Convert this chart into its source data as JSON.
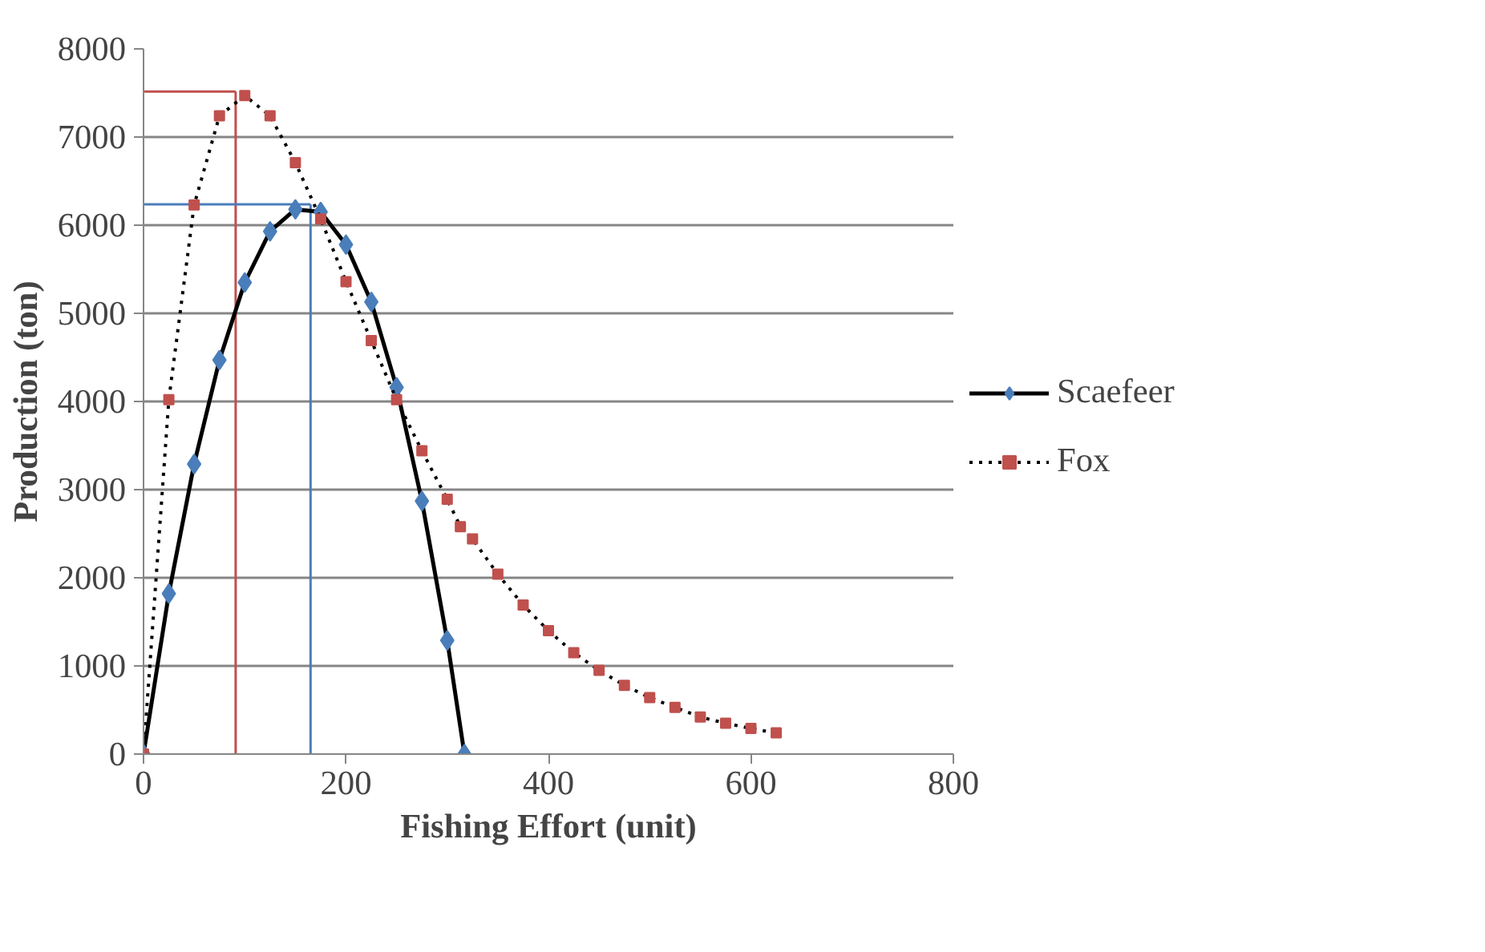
{
  "chart_data": {
    "type": "line",
    "xlabel": "Fishing Effort (unit)",
    "ylabel": "Production (ton)",
    "xlim": [
      0,
      800
    ],
    "ylim": [
      0,
      8000
    ],
    "xticks": [
      0,
      200,
      400,
      600,
      800
    ],
    "yticks": [
      0,
      1000,
      2000,
      3000,
      4000,
      5000,
      6000,
      7000,
      8000
    ],
    "grid": "y",
    "legend": "right",
    "series": [
      {
        "name": "Scaefeer",
        "color": "#4a7ebb",
        "marker": "diamond",
        "line_style": "solid",
        "x": [
          0,
          25,
          50,
          75,
          100,
          125,
          150,
          175,
          200,
          225,
          250,
          275,
          300,
          317
        ],
        "values": [
          0,
          1820,
          3290,
          4470,
          5350,
          5930,
          6180,
          6150,
          5780,
          5130,
          4160,
          2870,
          1290,
          0
        ]
      },
      {
        "name": "Fox",
        "color": "#c0504d",
        "marker": "square",
        "line_style": "dotted",
        "x": [
          0,
          25,
          50,
          75,
          100,
          125,
          150,
          175,
          200,
          225,
          250,
          275,
          300,
          313,
          325,
          350,
          375,
          400,
          425,
          450,
          475,
          500,
          525,
          550,
          575,
          600,
          625
        ],
        "values": [
          0,
          4020,
          6230,
          7240,
          7470,
          7240,
          6710,
          6070,
          5360,
          4690,
          4020,
          3440,
          2890,
          2580,
          2440,
          2040,
          1690,
          1400,
          1150,
          950,
          780,
          640,
          530,
          420,
          350,
          290,
          240
        ]
      }
    ],
    "ref_lines": [
      {
        "axis": "x",
        "value": 91,
        "color": "#c0504d"
      },
      {
        "axis": "y",
        "value": 7515,
        "color": "#c0504d"
      },
      {
        "axis": "x",
        "value": 165,
        "color": "#4a7ebb"
      },
      {
        "axis": "y",
        "value": 6236,
        "color": "#4a7ebb"
      }
    ]
  }
}
